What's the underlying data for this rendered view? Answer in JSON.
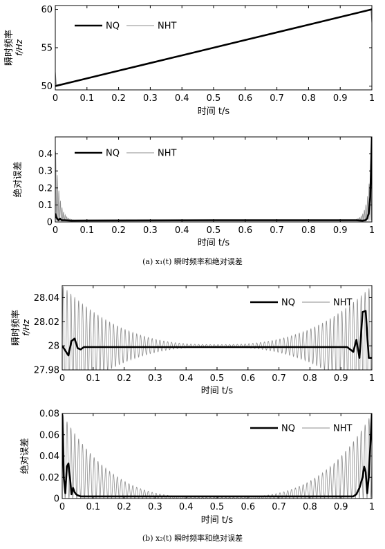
{
  "figure": {
    "caption_a": "(a) x₁(t) 瞬时频率和绝对误差",
    "caption_b": "(b) x₂(t) 瞬时频率和绝对误差"
  },
  "colors": {
    "nq": "#000000",
    "nht": "#8c8c8c",
    "background": "#ffffff"
  },
  "chart_data": [
    {
      "id": "a1",
      "type": "line",
      "title": "",
      "ylabel": "瞬时频率",
      "ylabel_unit": "f/Hz",
      "xlabel": "时间 t/s",
      "xlim": [
        0,
        1
      ],
      "ylim": [
        49.5,
        60.5
      ],
      "xticks": [
        "0",
        "0.1",
        "0.2",
        "0.3",
        "0.4",
        "0.5",
        "0.6",
        "0.7",
        "0.8",
        "0.9",
        "1"
      ],
      "yticks": [
        50,
        55,
        60
      ],
      "legend": [
        "NQ",
        "NHT"
      ],
      "legend_position": "top-left",
      "series": [
        {
          "name": "NQ",
          "x": [
            0,
            0.1,
            0.2,
            0.3,
            0.4,
            0.5,
            0.6,
            0.7,
            0.8,
            0.9,
            1.0
          ],
          "values": [
            50,
            51,
            52,
            53,
            54,
            55,
            56,
            57,
            58,
            59,
            60
          ]
        },
        {
          "name": "NHT",
          "x": [
            0,
            0.003,
            0.1,
            0.2,
            0.3,
            0.4,
            0.5,
            0.6,
            0.7,
            0.8,
            0.9,
            0.997,
            1.0
          ],
          "values": [
            51.8,
            50.1,
            51,
            52,
            53,
            54,
            55,
            56,
            57,
            58,
            59,
            60,
            58.3
          ]
        }
      ]
    },
    {
      "id": "a2",
      "type": "line",
      "title": "",
      "ylabel": "绝对误差",
      "xlabel": "时间 t/s",
      "xlim": [
        0,
        1
      ],
      "ylim": [
        0,
        0.5
      ],
      "xticks": [
        "0",
        "0.1",
        "0.2",
        "0.3",
        "0.4",
        "0.5",
        "0.6",
        "0.7",
        "0.8",
        "0.9",
        "1"
      ],
      "yticks": [
        "0",
        "0.1",
        "0.2",
        "0.3",
        "0.4"
      ],
      "legend": [
        "NQ",
        "NHT"
      ],
      "legend_position": "top-left",
      "series": [
        {
          "name": "NQ",
          "x": [
            0,
            0.004,
            0.01,
            0.015,
            0.02,
            0.03,
            0.05,
            0.5,
            0.95,
            0.97,
            0.98,
            0.985,
            0.99,
            0.995,
            1.0
          ],
          "values": [
            0.05,
            0.025,
            0.01,
            0.02,
            0.01,
            0.01,
            0.008,
            0.01,
            0.01,
            0.008,
            0.01,
            0.02,
            0.05,
            0.15,
            0.5
          ]
        },
        {
          "name": "NHT",
          "envelope": {
            "peak": 0.45,
            "decay": 0.012,
            "oscillation_period": 0.005,
            "baseline": 0.008
          }
        }
      ]
    },
    {
      "id": "b1",
      "type": "line",
      "title": "",
      "ylabel": "瞬时频率",
      "ylabel_unit": "f/Hz",
      "xlabel": "时间 t/s",
      "xlim": [
        0,
        1
      ],
      "ylim": [
        27.98,
        28.05
      ],
      "xticks": [
        "0",
        "0.1",
        "0.2",
        "0.3",
        "0.4",
        "0.5",
        "0.6",
        "0.7",
        "0.8",
        "0.9",
        "1"
      ],
      "yticks": [
        "27.98",
        "28",
        "28.02",
        "28.04"
      ],
      "legend": [
        "NQ",
        "NHT"
      ],
      "legend_position": "top-right",
      "series": [
        {
          "name": "NQ",
          "x": [
            0,
            0.02,
            0.03,
            0.04,
            0.05,
            0.06,
            0.07,
            0.1,
            0.5,
            0.9,
            0.92,
            0.94,
            0.95,
            0.96,
            0.97,
            0.98,
            0.99,
            1.0
          ],
          "values": [
            28.0,
            27.992,
            28.004,
            28.006,
            27.998,
            27.997,
            27.999,
            27.999,
            27.999,
            27.999,
            27.999,
            27.995,
            28.005,
            27.99,
            28.028,
            28.029,
            27.99,
            27.99
          ]
        },
        {
          "name": "NHT",
          "envelope": {
            "center": 28.0,
            "edge_amplitude": 0.05,
            "mid_amplitude": 0.001,
            "oscillation_period": 0.0125
          }
        }
      ]
    },
    {
      "id": "b2",
      "type": "line",
      "title": "",
      "ylabel": "绝对误差",
      "xlabel": "时间 t/s",
      "xlim": [
        0,
        1
      ],
      "ylim": [
        0,
        0.08
      ],
      "xticks": [
        "0",
        "0.1",
        "0.2",
        "0.3",
        "0.4",
        "0.5",
        "0.6",
        "0.7",
        "0.8",
        "0.9",
        "1"
      ],
      "yticks": [
        "0",
        "0.02",
        "0.04",
        "0.06",
        "0.08"
      ],
      "legend": [
        "NQ",
        "NHT"
      ],
      "legend_position": "top-right",
      "series": [
        {
          "name": "NQ",
          "x": [
            0,
            0.005,
            0.01,
            0.015,
            0.02,
            0.025,
            0.03,
            0.035,
            0.04,
            0.045,
            0.05,
            0.06,
            0.1,
            0.5,
            0.9,
            0.94,
            0.95,
            0.96,
            0.97,
            0.975,
            0.98,
            0.985,
            0.99,
            1.0
          ],
          "values": [
            0.08,
            0.02,
            0.005,
            0.03,
            0.033,
            0.02,
            0.004,
            0.01,
            0.006,
            0.004,
            0.003,
            0.002,
            0.002,
            0.002,
            0.002,
            0.002,
            0.004,
            0.01,
            0.02,
            0.03,
            0.025,
            0.005,
            0.02,
            0.08
          ]
        },
        {
          "name": "NHT",
          "envelope": {
            "edge_amplitude": 0.08,
            "mid_amplitude": 0.001,
            "oscillation_period": 0.0125
          }
        }
      ]
    }
  ]
}
